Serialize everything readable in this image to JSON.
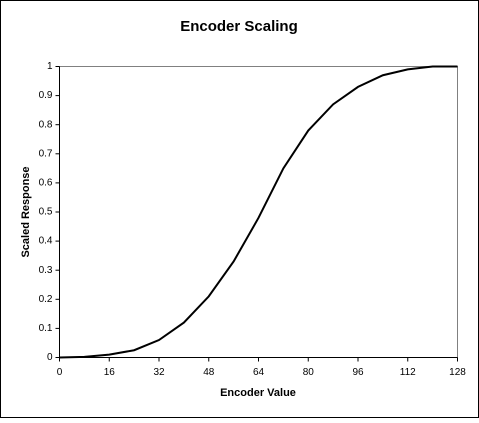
{
  "chart_data": {
    "type": "line",
    "title": "Encoder Scaling",
    "x_label": "Encoder Value",
    "y_label": "Scaled Response",
    "x": [
      0,
      8,
      16,
      24,
      32,
      40,
      48,
      56,
      64,
      72,
      80,
      88,
      96,
      104,
      112,
      120,
      128
    ],
    "values": [
      0,
      0.002,
      0.01,
      0.025,
      0.06,
      0.12,
      0.21,
      0.33,
      0.48,
      0.65,
      0.78,
      0.87,
      0.93,
      0.97,
      0.99,
      1,
      1
    ],
    "color": "#000000",
    "xlim": [
      0,
      128
    ],
    "xticks": [
      0,
      16,
      32,
      48,
      64,
      80,
      96,
      112,
      128
    ],
    "ylim": [
      0,
      1
    ],
    "yticks": [
      0,
      0.1,
      0.2,
      0.3,
      0.4,
      0.5,
      0.6,
      0.7,
      0.8,
      0.9,
      1
    ],
    "grid": false
  }
}
